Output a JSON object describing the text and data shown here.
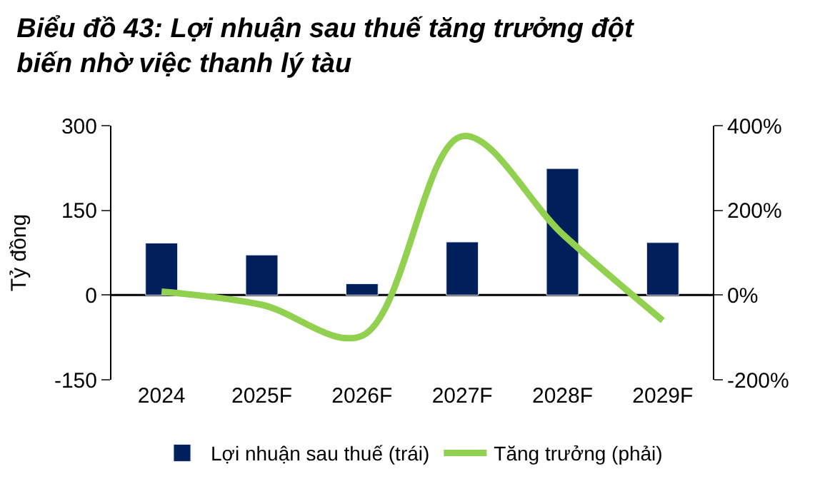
{
  "chart_data": {
    "type": "bar",
    "title": "Biểu đồ 43: Lợi nhuận sau thuế tăng trưởng đột biến nhờ việc thanh lý tàu",
    "ylabel": "Tỷ đồng",
    "categories": [
      "2024",
      "2025F",
      "2026F",
      "2027F",
      "2028F",
      "2029F"
    ],
    "series": [
      {
        "name": "Lợi nhuận sau thuế (trái)",
        "color": "#001f5b",
        "values": [
          92,
          71,
          20,
          94,
          224,
          93
        ]
      },
      {
        "name": "Tăng trưởng (phải)",
        "type": "line",
        "axis": "y2",
        "color": "#92d050",
        "values": [
          8,
          -23,
          -96,
          375,
          144,
          -60
        ]
      }
    ],
    "ylim": [
      -150,
      300
    ],
    "yticks": [
      -150,
      0,
      150,
      300
    ],
    "y2lim": [
      -200,
      400
    ],
    "y2ticks": [
      {
        "value": -200,
        "label": "-200%"
      },
      {
        "value": 0,
        "label": "0%"
      },
      {
        "value": 200,
        "label": "200%"
      },
      {
        "value": 400,
        "label": "400%"
      }
    ],
    "ref_lines": [
      {
        "axis": "y",
        "value": 0,
        "color": "#000000"
      }
    ],
    "grid": false,
    "legend": "bottom"
  }
}
